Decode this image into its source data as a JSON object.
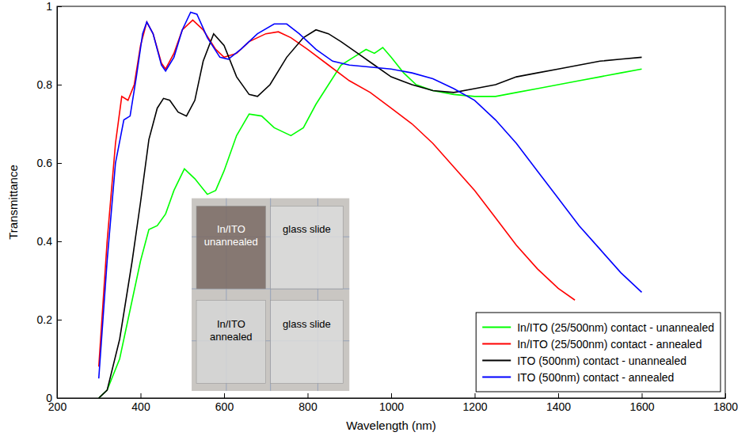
{
  "chart_data": {
    "type": "line",
    "x_label": "Wavelength (nm)",
    "y_label": "Transmittance",
    "xlim": [
      200,
      1800
    ],
    "xticks": [
      200,
      400,
      600,
      800,
      1000,
      1200,
      1400,
      1600,
      1800
    ],
    "ylim": [
      0,
      1
    ],
    "yticks": [
      0,
      0.2,
      0.4,
      0.6,
      0.8,
      1
    ],
    "grid": false,
    "legend": "lower right",
    "annotations": [
      "In/ITO unannealed",
      "glass slide",
      "In/ITO annealed",
      "glass slide"
    ],
    "series": [
      {
        "name": "In/ITO (25/500nm) contact - unannealed",
        "color": "#00ff00",
        "x": [
          300,
          320,
          350,
          380,
          400,
          420,
          440,
          460,
          480,
          505,
          530,
          560,
          580,
          600,
          630,
          660,
          690,
          720,
          760,
          790,
          820,
          850,
          880,
          910,
          940,
          960,
          980,
          1000,
          1030,
          1060,
          1100,
          1150,
          1200,
          1250,
          1300,
          1350,
          1400,
          1450,
          1500,
          1550,
          1600
        ],
        "values": [
          0.0,
          0.02,
          0.1,
          0.25,
          0.35,
          0.43,
          0.44,
          0.47,
          0.53,
          0.585,
          0.56,
          0.52,
          0.53,
          0.58,
          0.67,
          0.725,
          0.72,
          0.69,
          0.67,
          0.69,
          0.75,
          0.8,
          0.85,
          0.87,
          0.89,
          0.88,
          0.895,
          0.87,
          0.83,
          0.8,
          0.785,
          0.775,
          0.77,
          0.77,
          0.78,
          0.79,
          0.8,
          0.81,
          0.82,
          0.83,
          0.84
        ]
      },
      {
        "name": "In/ITO (25/500nm) contact - annealed",
        "color": "#ff0000",
        "x": [
          300,
          320,
          340,
          355,
          370,
          385,
          400,
          415,
          430,
          450,
          460,
          480,
          500,
          525,
          550,
          580,
          600,
          630,
          660,
          700,
          730,
          760,
          800,
          850,
          900,
          950,
          1000,
          1050,
          1100,
          1150,
          1200,
          1250,
          1300,
          1350,
          1400,
          1440
        ],
        "values": [
          0.08,
          0.4,
          0.65,
          0.77,
          0.76,
          0.8,
          0.9,
          0.96,
          0.93,
          0.855,
          0.84,
          0.88,
          0.94,
          0.965,
          0.94,
          0.89,
          0.87,
          0.88,
          0.91,
          0.93,
          0.935,
          0.92,
          0.89,
          0.85,
          0.81,
          0.78,
          0.74,
          0.7,
          0.65,
          0.59,
          0.53,
          0.46,
          0.39,
          0.33,
          0.28,
          0.25
        ]
      },
      {
        "name": "ITO (500nm) contact - unannealed",
        "color": "#000000",
        "x": [
          300,
          320,
          350,
          380,
          400,
          420,
          440,
          455,
          470,
          490,
          510,
          530,
          550,
          575,
          600,
          630,
          660,
          680,
          710,
          750,
          790,
          820,
          850,
          880,
          920,
          960,
          1000,
          1050,
          1100,
          1150,
          1200,
          1250,
          1300,
          1350,
          1400,
          1450,
          1500,
          1550,
          1600
        ],
        "values": [
          0.0,
          0.02,
          0.15,
          0.35,
          0.5,
          0.66,
          0.74,
          0.765,
          0.76,
          0.73,
          0.72,
          0.76,
          0.86,
          0.93,
          0.9,
          0.82,
          0.775,
          0.77,
          0.8,
          0.87,
          0.92,
          0.94,
          0.93,
          0.91,
          0.88,
          0.85,
          0.82,
          0.8,
          0.785,
          0.78,
          0.79,
          0.8,
          0.82,
          0.83,
          0.84,
          0.85,
          0.86,
          0.865,
          0.87
        ]
      },
      {
        "name": "ITO (500nm) contact - annealed",
        "color": "#0000ff",
        "x": [
          300,
          320,
          340,
          360,
          375,
          390,
          405,
          415,
          430,
          450,
          460,
          480,
          500,
          520,
          535,
          560,
          590,
          610,
          640,
          680,
          720,
          750,
          780,
          820,
          860,
          900,
          950,
          1000,
          1050,
          1100,
          1150,
          1200,
          1250,
          1300,
          1350,
          1400,
          1450,
          1500,
          1550,
          1600
        ],
        "values": [
          0.05,
          0.35,
          0.6,
          0.71,
          0.72,
          0.82,
          0.93,
          0.96,
          0.93,
          0.85,
          0.835,
          0.87,
          0.94,
          0.985,
          0.98,
          0.92,
          0.87,
          0.865,
          0.89,
          0.93,
          0.955,
          0.955,
          0.93,
          0.89,
          0.86,
          0.85,
          0.845,
          0.84,
          0.83,
          0.815,
          0.79,
          0.76,
          0.71,
          0.65,
          0.58,
          0.51,
          0.44,
          0.38,
          0.32,
          0.27
        ]
      }
    ]
  }
}
